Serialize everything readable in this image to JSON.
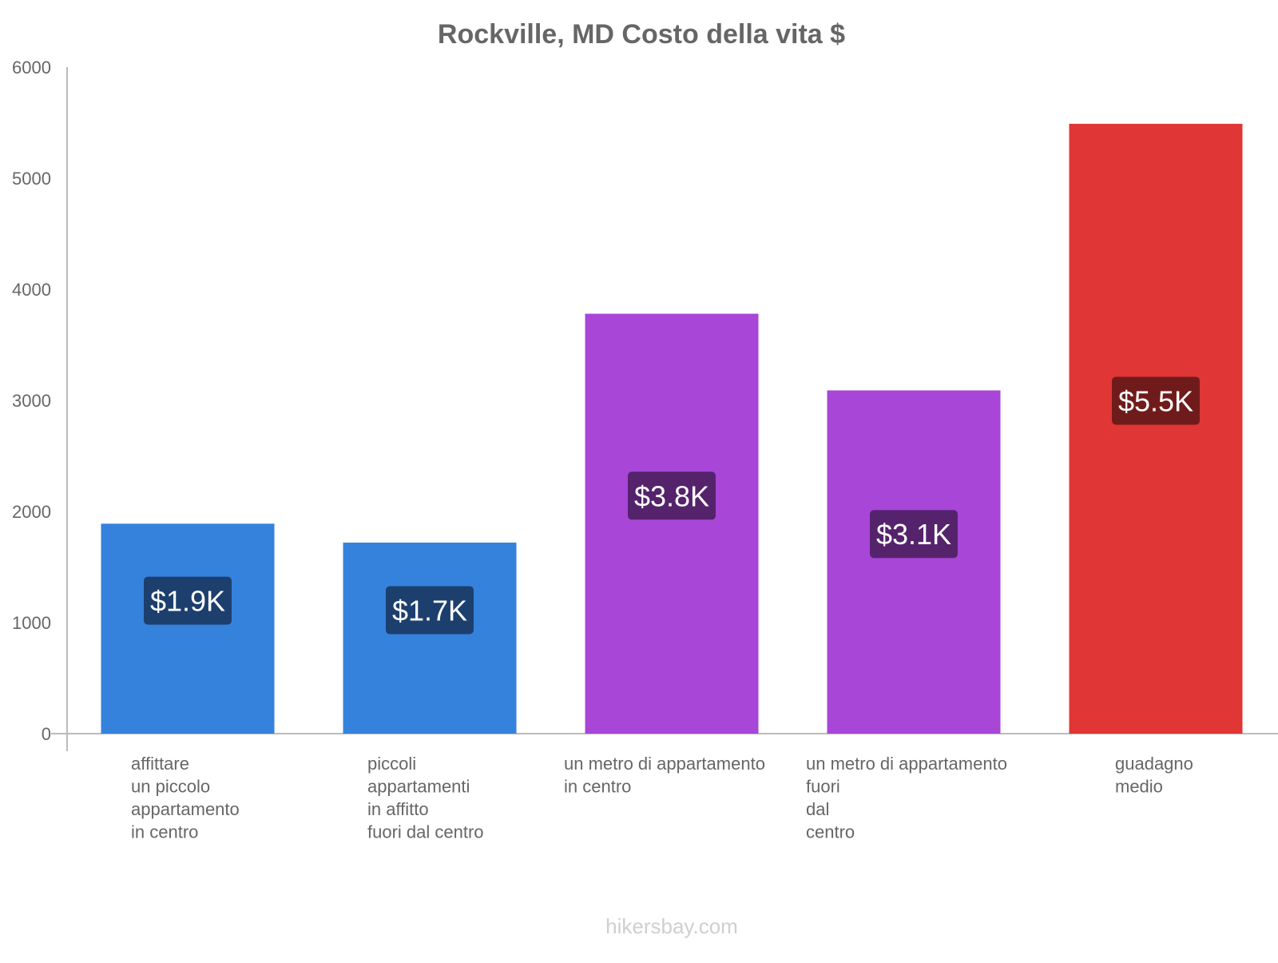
{
  "chart_data": {
    "type": "bar",
    "title": "Rockville, MD Costo della vita $",
    "xlabel": "",
    "ylabel": "",
    "ylim": [
      0,
      6000
    ],
    "yticks": [
      "0",
      "1000",
      "2000",
      "3000",
      "4000",
      "5000",
      "6000"
    ],
    "grid": false,
    "categories": [
      [
        "affittare",
        "un piccolo",
        "appartamento",
        "in centro"
      ],
      [
        "piccoli",
        "appartamenti",
        "in affitto",
        "fuori dal centro"
      ],
      [
        "un metro di appartamento",
        "in centro"
      ],
      [
        "un metro di appartamento",
        "fuori",
        "dal",
        "centro"
      ],
      [
        "guadagno",
        "medio"
      ]
    ],
    "values": [
      1890,
      1720,
      3780,
      3090,
      5490
    ],
    "data_labels": [
      "$1.9K",
      "$1.7K",
      "$3.8K",
      "$3.1K",
      "$5.5K"
    ],
    "bar_colors": [
      "#3582dd",
      "#3582dd",
      "#a846d8",
      "#a846d8",
      "#e03636"
    ],
    "label_colors": [
      "#1d3f6e",
      "#1d3f6e",
      "#54236c",
      "#54236c",
      "#701b1b"
    ]
  },
  "watermark": "hikersbay.com"
}
